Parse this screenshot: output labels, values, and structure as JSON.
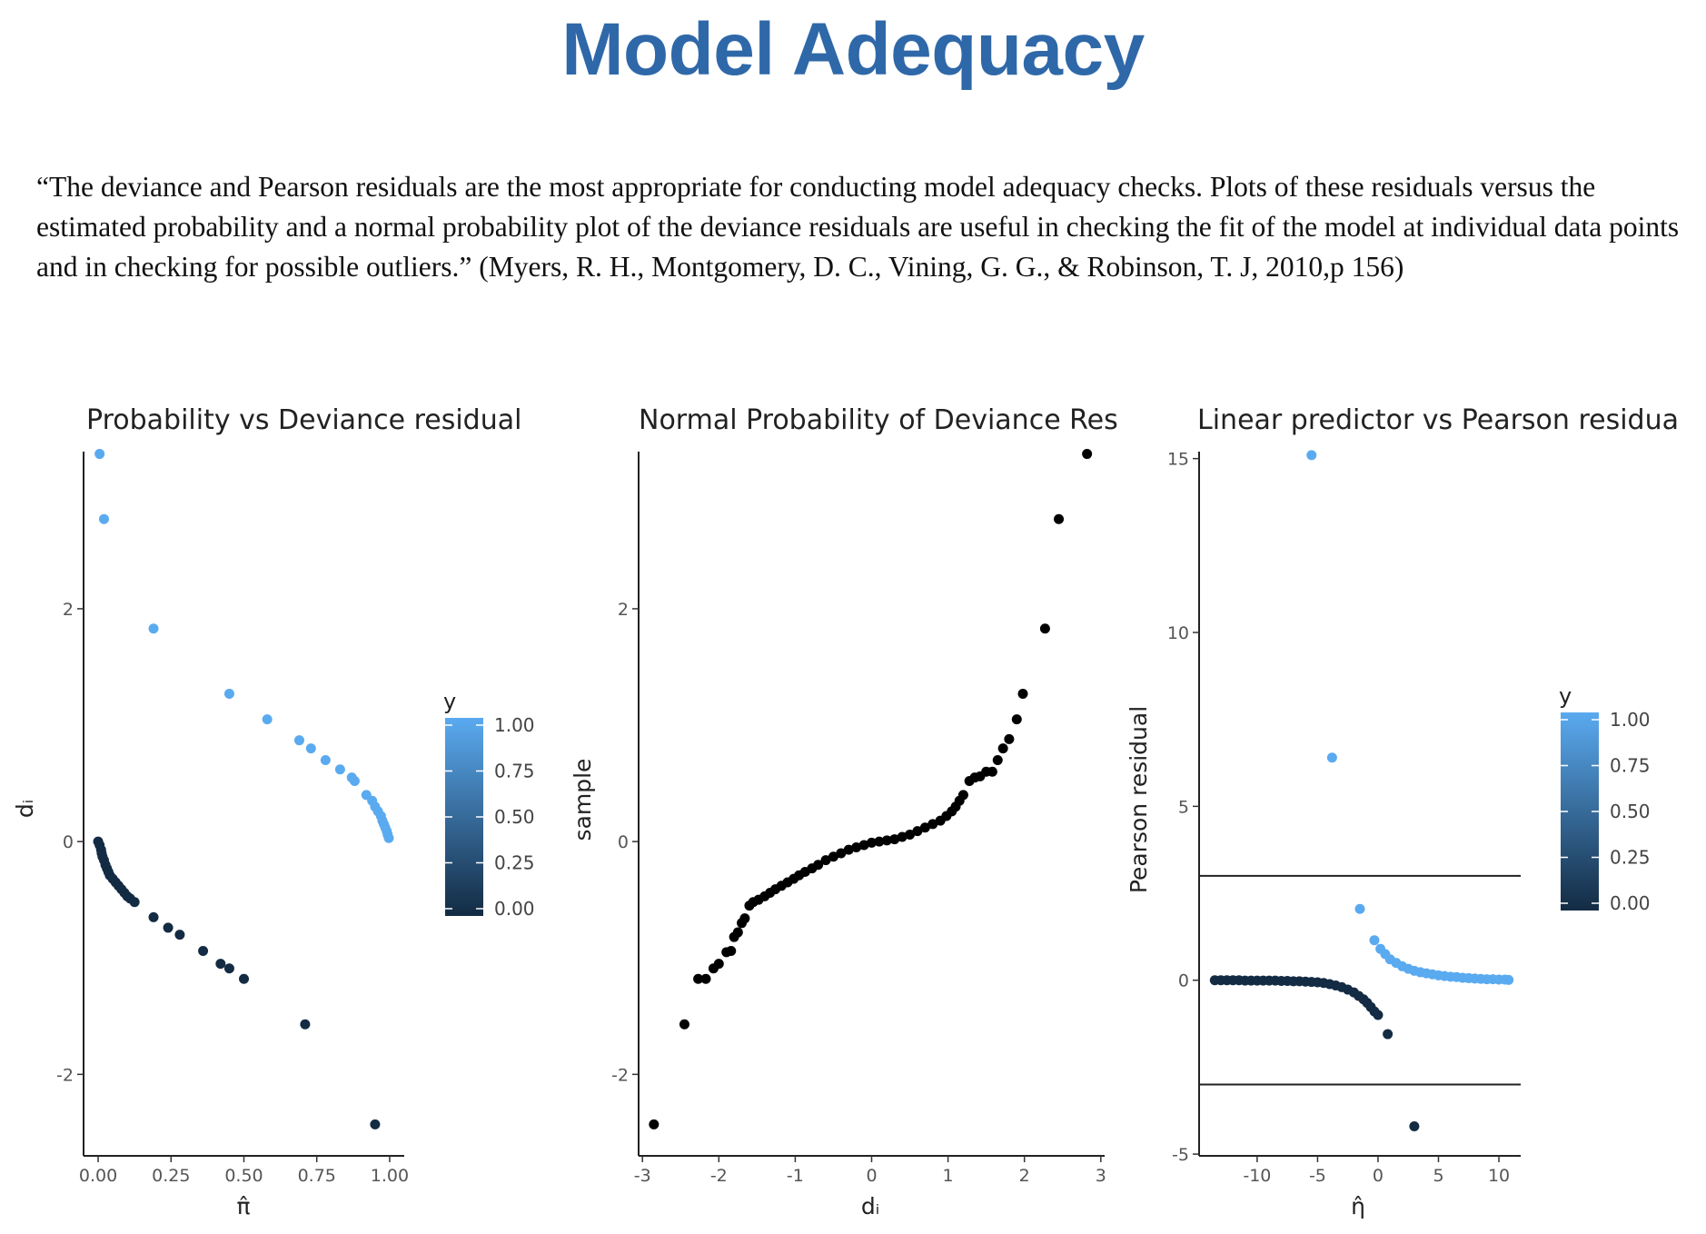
{
  "slide": {
    "title": "Model Adequacy",
    "quote": "“The deviance and Pearson residuals are the most appropriate for conducting model adequacy checks. Plots of these residuals versus the estimated probability and a normal probability plot of the deviance residuals are useful in checking the fit of the model at individual data points and in checking for possible outliers.” (Myers, R. H., Montgomery, D. C., Vining, G. G., & Robinson, T. J, 2010,p 156)"
  },
  "colors": {
    "y_high": "#5aaaf0",
    "y_low": "#132b43",
    "black": "#000000",
    "title": "#2f68a8"
  },
  "chart_data": [
    {
      "type": "scatter",
      "title": "Probability vs Deviance residual",
      "xlabel": "π̂",
      "ylabel": "dᵢ",
      "xlim": [
        -0.05,
        1.05
      ],
      "ylim": [
        -2.7,
        3.35
      ],
      "xticks": [
        0,
        0.25,
        0.5,
        0.75,
        1
      ],
      "xtick_labels": [
        "0.00",
        "0.25",
        "0.50",
        "0.75",
        "1.00"
      ],
      "yticks": [
        -2,
        0,
        2
      ],
      "ytick_labels": [
        "-2",
        "0",
        "2"
      ],
      "legend": {
        "title": "y",
        "placement": "right",
        "labels": [
          "1.00",
          "0.75",
          "0.50",
          "0.25",
          "0.00"
        ]
      },
      "series": [
        {
          "y": 1,
          "points": [
            [
              0.005,
              3.33
            ],
            [
              0.02,
              2.77
            ],
            [
              0.19,
              1.83
            ],
            [
              0.45,
              1.27
            ],
            [
              0.58,
              1.05
            ],
            [
              0.69,
              0.87
            ],
            [
              0.73,
              0.8
            ],
            [
              0.78,
              0.7
            ],
            [
              0.83,
              0.62
            ],
            [
              0.87,
              0.55
            ],
            [
              0.88,
              0.52
            ],
            [
              0.92,
              0.4
            ],
            [
              0.94,
              0.35
            ],
            [
              0.95,
              0.3
            ],
            [
              0.96,
              0.26
            ],
            [
              0.97,
              0.22
            ],
            [
              0.975,
              0.18
            ],
            [
              0.98,
              0.15
            ],
            [
              0.985,
              0.12
            ],
            [
              0.99,
              0.09
            ],
            [
              0.993,
              0.06
            ],
            [
              0.997,
              0.03
            ]
          ]
        },
        {
          "y": 0,
          "points": [
            [
              0.0,
              0.0
            ],
            [
              0.005,
              -0.03
            ],
            [
              0.01,
              -0.07
            ],
            [
              0.012,
              -0.1
            ],
            [
              0.015,
              -0.13
            ],
            [
              0.02,
              -0.16
            ],
            [
              0.025,
              -0.2
            ],
            [
              0.03,
              -0.23
            ],
            [
              0.035,
              -0.26
            ],
            [
              0.04,
              -0.29
            ],
            [
              0.05,
              -0.32
            ],
            [
              0.06,
              -0.35
            ],
            [
              0.07,
              -0.38
            ],
            [
              0.08,
              -0.41
            ],
            [
              0.09,
              -0.44
            ],
            [
              0.1,
              -0.47
            ],
            [
              0.11,
              -0.49
            ],
            [
              0.125,
              -0.52
            ],
            [
              0.19,
              -0.65
            ],
            [
              0.24,
              -0.74
            ],
            [
              0.28,
              -0.8
            ],
            [
              0.36,
              -0.94
            ],
            [
              0.42,
              -1.05
            ],
            [
              0.45,
              -1.09
            ],
            [
              0.5,
              -1.18
            ],
            [
              0.71,
              -1.57
            ],
            [
              0.95,
              -2.43
            ]
          ]
        }
      ]
    },
    {
      "type": "scatter",
      "title": "Normal Probability of Deviance Res",
      "xlabel": "dᵢ",
      "ylabel": "sample",
      "xlim": [
        -3.05,
        3.05
      ],
      "ylim": [
        -2.7,
        3.35
      ],
      "xticks": [
        -3,
        -2,
        -1,
        0,
        1,
        2,
        3
      ],
      "xtick_labels": [
        "-3",
        "-2",
        "-1",
        "0",
        "1",
        "2",
        "3"
      ],
      "yticks": [
        -2,
        0,
        2
      ],
      "ytick_labels": [
        "-2",
        "0",
        "2"
      ],
      "points": [
        [
          -2.85,
          -2.43
        ],
        [
          -2.45,
          -1.57
        ],
        [
          -2.27,
          -1.18
        ],
        [
          -2.17,
          -1.18
        ],
        [
          -2.07,
          -1.09
        ],
        [
          -2.0,
          -1.05
        ],
        [
          -1.9,
          -0.95
        ],
        [
          -1.84,
          -0.94
        ],
        [
          -1.8,
          -0.82
        ],
        [
          -1.75,
          -0.78
        ],
        [
          -1.7,
          -0.7
        ],
        [
          -1.66,
          -0.66
        ],
        [
          -1.6,
          -0.55
        ],
        [
          -1.55,
          -0.52
        ],
        [
          -1.48,
          -0.5
        ],
        [
          -1.4,
          -0.47
        ],
        [
          -1.33,
          -0.44
        ],
        [
          -1.26,
          -0.41
        ],
        [
          -1.18,
          -0.38
        ],
        [
          -1.1,
          -0.35
        ],
        [
          -1.02,
          -0.32
        ],
        [
          -0.95,
          -0.29
        ],
        [
          -0.87,
          -0.26
        ],
        [
          -0.78,
          -0.23
        ],
        [
          -0.7,
          -0.2
        ],
        [
          -0.6,
          -0.16
        ],
        [
          -0.5,
          -0.13
        ],
        [
          -0.4,
          -0.1
        ],
        [
          -0.3,
          -0.07
        ],
        [
          -0.2,
          -0.05
        ],
        [
          -0.1,
          -0.03
        ],
        [
          0.0,
          -0.01
        ],
        [
          0.1,
          0.0
        ],
        [
          0.2,
          0.01
        ],
        [
          0.3,
          0.02
        ],
        [
          0.4,
          0.04
        ],
        [
          0.5,
          0.06
        ],
        [
          0.6,
          0.09
        ],
        [
          0.7,
          0.12
        ],
        [
          0.8,
          0.15
        ],
        [
          0.9,
          0.18
        ],
        [
          0.98,
          0.22
        ],
        [
          1.05,
          0.26
        ],
        [
          1.1,
          0.3
        ],
        [
          1.15,
          0.35
        ],
        [
          1.2,
          0.4
        ],
        [
          1.28,
          0.52
        ],
        [
          1.35,
          0.55
        ],
        [
          1.42,
          0.56
        ],
        [
          1.5,
          0.6
        ],
        [
          1.58,
          0.6
        ],
        [
          1.65,
          0.7
        ],
        [
          1.72,
          0.8
        ],
        [
          1.8,
          0.88
        ],
        [
          1.9,
          1.05
        ],
        [
          1.98,
          1.27
        ],
        [
          2.27,
          1.83
        ],
        [
          2.45,
          2.77
        ],
        [
          2.82,
          3.33
        ]
      ]
    },
    {
      "type": "scatter",
      "title": "Linear predictor vs Pearson residua",
      "xlabel": "η̂",
      "ylabel": "Pearson residual",
      "xlim": [
        -14.8,
        11.8
      ],
      "ylim": [
        -5.05,
        15.2
      ],
      "xticks": [
        -10,
        -5,
        0,
        5,
        10
      ],
      "xtick_labels": [
        "-10",
        "-5",
        "0",
        "5",
        "10"
      ],
      "yticks": [
        -5,
        0,
        5,
        10,
        15
      ],
      "ytick_labels": [
        "-5",
        "0",
        "5",
        "10",
        "15"
      ],
      "hlines": [
        3,
        -3
      ],
      "legend": {
        "title": "y",
        "placement": "right",
        "labels": [
          "1.00",
          "0.75",
          "0.50",
          "0.25",
          "0.00"
        ]
      },
      "series": [
        {
          "y": 1,
          "points": [
            [
              -5.5,
              15.1
            ],
            [
              -3.8,
              6.4
            ],
            [
              -1.5,
              2.05
            ],
            [
              -0.3,
              1.15
            ],
            [
              0.2,
              0.9
            ],
            [
              0.6,
              0.75
            ],
            [
              1.0,
              0.6
            ],
            [
              1.5,
              0.5
            ],
            [
              2.0,
              0.4
            ],
            [
              2.5,
              0.33
            ],
            [
              3.0,
              0.27
            ],
            [
              3.5,
              0.23
            ],
            [
              4.0,
              0.2
            ],
            [
              4.5,
              0.17
            ],
            [
              5.0,
              0.14
            ],
            [
              5.5,
              0.12
            ],
            [
              6.0,
              0.1
            ],
            [
              6.5,
              0.09
            ],
            [
              7.0,
              0.07
            ],
            [
              7.5,
              0.06
            ],
            [
              8.0,
              0.05
            ],
            [
              8.5,
              0.04
            ],
            [
              9.0,
              0.03
            ],
            [
              9.5,
              0.03
            ],
            [
              10.0,
              0.02
            ],
            [
              10.5,
              0.02
            ],
            [
              10.8,
              0.01
            ]
          ]
        },
        {
          "y": 0,
          "points": [
            [
              -13.5,
              0.0
            ],
            [
              -13.0,
              0.0
            ],
            [
              -12.5,
              0.0
            ],
            [
              -12.0,
              0.0
            ],
            [
              -11.5,
              0.0
            ],
            [
              -11.0,
              -0.01
            ],
            [
              -10.5,
              -0.01
            ],
            [
              -10.0,
              -0.01
            ],
            [
              -9.5,
              -0.01
            ],
            [
              -9.0,
              -0.01
            ],
            [
              -8.5,
              -0.01
            ],
            [
              -8.0,
              -0.02
            ],
            [
              -7.5,
              -0.02
            ],
            [
              -7.0,
              -0.03
            ],
            [
              -6.5,
              -0.03
            ],
            [
              -6.0,
              -0.04
            ],
            [
              -5.5,
              -0.05
            ],
            [
              -5.0,
              -0.06
            ],
            [
              -4.5,
              -0.08
            ],
            [
              -4.0,
              -0.11
            ],
            [
              -3.5,
              -0.15
            ],
            [
              -3.0,
              -0.2
            ],
            [
              -2.5,
              -0.27
            ],
            [
              -2.0,
              -0.35
            ],
            [
              -1.6,
              -0.45
            ],
            [
              -1.2,
              -0.55
            ],
            [
              -0.9,
              -0.65
            ],
            [
              -0.6,
              -0.77
            ],
            [
              -0.3,
              -0.9
            ],
            [
              0.0,
              -1.0
            ],
            [
              0.8,
              -1.55
            ],
            [
              3.0,
              -4.2
            ]
          ]
        }
      ]
    }
  ]
}
